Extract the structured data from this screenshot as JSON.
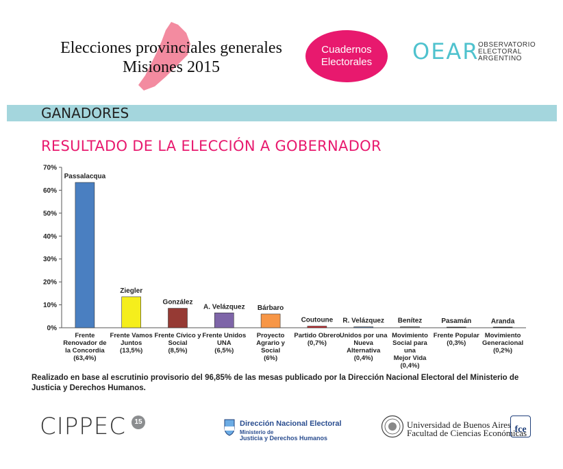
{
  "header": {
    "title_line1": "Elecciones provinciales generales",
    "title_line2": "Misiones 2015",
    "badge_line1": "Cuadernos",
    "badge_line2": "Electorales",
    "org_logo_big": "OEAR",
    "org_line1": "OBSERVATORIO",
    "org_line2": "ELECTORAL",
    "org_line3": "ARGENTINO",
    "map_color": "#f38ba0"
  },
  "section": {
    "band_label": "GANADORES",
    "band_color": "#a4d6dd",
    "subtitle": "RESULTADO DE LA ELECCIÓN A GOBERNADOR",
    "accent_color": "#e8196e"
  },
  "chart_data": {
    "type": "bar",
    "title": "RESULTADO DE LA ELECCIÓN A GOBERNADOR",
    "xlabel": "",
    "ylabel": "",
    "ylim": [
      0,
      70
    ],
    "yticks": [
      0,
      10,
      20,
      30,
      40,
      50,
      60,
      70
    ],
    "ytick_labels": [
      "0%",
      "10%",
      "20%",
      "30%",
      "40%",
      "50%",
      "60%",
      "70%"
    ],
    "grid": false,
    "categories": [
      "Frente Renovador de la Concordia (63,4%)",
      "Frente Vamos Juntos (13,5%)",
      "Frente Cívico y Social (8,5%)",
      "Frente Unidos UNA (6,5%)",
      "Proyecto Agrario y Social (6%)",
      "Partido Obrero (0,7%)",
      "Unidos por una Nueva Alternativa (0,4%)",
      "Movimiento Social para una Mejor Vida (0,4%)",
      "Frente Popular (0,3%)",
      "Movimiento Generacional (0,2%)"
    ],
    "category_lines": [
      [
        "Frente",
        "Renovador de",
        "la Concordia",
        "(63,4%)"
      ],
      [
        "Frente Vamos",
        "Juntos",
        "(13,5%)"
      ],
      [
        "Frente Cívico y",
        "Social",
        "(8,5%)"
      ],
      [
        "Frente Unidos",
        "UNA",
        "(6,5%)"
      ],
      [
        "Proyecto",
        "Agrario y",
        "Social",
        "(6%)"
      ],
      [
        "Partido Obrero",
        "(0,7%)"
      ],
      [
        "Unidos por una",
        "Nueva",
        "Alternativa",
        "(0,4%)"
      ],
      [
        "Movimiento",
        "Social para una",
        "Mejor Vida",
        "(0,4%)"
      ],
      [
        "Frente Popular",
        "(0,3%)"
      ],
      [
        "Movimiento",
        "Generacional",
        "(0,2%)"
      ]
    ],
    "candidates": [
      "Passalacqua",
      "Ziegler",
      "González",
      "A. Velázquez",
      "Bárbaro",
      "Coutoune",
      "R. Velázquez",
      "Benítez",
      "Pasamán",
      "Aranda"
    ],
    "values": [
      63.4,
      13.5,
      8.5,
      6.5,
      6.0,
      0.7,
      0.4,
      0.4,
      0.3,
      0.2
    ],
    "colors": [
      "#4a7fc1",
      "#f5ee1c",
      "#963a34",
      "#7e65a8",
      "#f79646",
      "#c0282d",
      "#5b7fa8",
      "#7a7a7a",
      "#3c3c3c",
      "#2a2a2a"
    ]
  },
  "footer": {
    "note": "Realizado en base al escrutinio provisorio del 96,85% de las mesas publicado por la Dirección Nacional Electoral del Ministerio de Justicia y Derechos Humanos.",
    "cippec": "CIPPEC",
    "cippec_badge": "15",
    "dne_line1": "Dirección Nacional Electoral",
    "dne_line2": "Ministerio de",
    "dne_line3": "Justicia y Derechos Humanos",
    "uba_line1": "Universidad de Buenos Aires",
    "uba_line2": "Facultad de Ciencias Económicas",
    "fce": "fce"
  }
}
